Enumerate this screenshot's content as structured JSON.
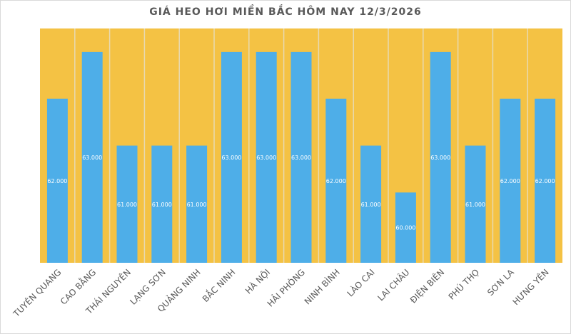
{
  "chart_data": {
    "type": "bar",
    "title": "GIÁ HEO HƠI MIỀN BẮC HÔM NAY 12/3/2026",
    "categories": [
      "TUYÊN QUANG",
      "CAO BẰNG",
      "THÁI NGUYÊN",
      "LẠNG SƠN",
      "QUẢNG NINH",
      "BẮC NINH",
      "HÀ NỘI",
      "HẢI PHÒNG",
      "NINH BÌNH",
      "LÀO CAI",
      "LAI CHÂU",
      "ĐIỆN BIÊN",
      "PHÚ THỌ",
      "SƠN LA",
      "HƯNG YÊN"
    ],
    "values": [
      62000,
      63000,
      61000,
      61000,
      61000,
      63000,
      63000,
      63000,
      62000,
      61000,
      60000,
      63000,
      61000,
      62000,
      62000
    ],
    "data_labels": [
      "62.000",
      "63.000",
      "61.000",
      "61.000",
      "61.000",
      "63.000",
      "63.000",
      "63.000",
      "62.000",
      "61.000",
      "60.000",
      "63.000",
      "61.000",
      "62.000",
      "62.000"
    ],
    "xlabel": "",
    "ylabel": "",
    "ylim": [
      58500,
      63500
    ],
    "grid": false,
    "colors": {
      "bar": "#4eaee8",
      "plot_background": "#f4c244",
      "separator": "#e8d9b0",
      "title": "#595959",
      "label": "#595959"
    }
  }
}
